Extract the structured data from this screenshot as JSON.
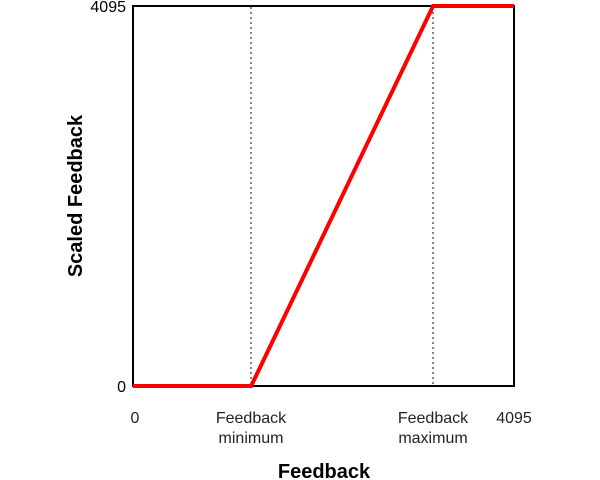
{
  "chart_data": {
    "type": "line",
    "title": "",
    "xlabel": "Feedback",
    "ylabel": "Scaled Feedback",
    "xlim": [
      0,
      4095
    ],
    "ylim": [
      0,
      4095
    ],
    "grid": false,
    "legend": null,
    "x_tick_labels": [
      {
        "label_line1": "0",
        "label_line2": "",
        "pos": 0
      },
      {
        "label_line1": "Feedback",
        "label_line2": "minimum",
        "pos": 1270
      },
      {
        "label_line1": "Feedback",
        "label_line2": "maximum",
        "pos": 3225
      },
      {
        "label_line1": "4095",
        "label_line2": "",
        "pos": 4095
      }
    ],
    "y_tick_labels": [
      {
        "label": "0",
        "pos": 0
      },
      {
        "label": "4095",
        "pos": 4095
      }
    ],
    "reference_lines": [
      {
        "orientation": "vertical",
        "style": "dotted",
        "x": 1270,
        "label": "Feedback minimum"
      },
      {
        "orientation": "vertical",
        "style": "dotted",
        "x": 3225,
        "label": "Feedback maximum"
      }
    ],
    "series": [
      {
        "name": "Scaled Feedback",
        "color": "#ff0000",
        "x": [
          0,
          1270,
          3225,
          4095
        ],
        "y": [
          0,
          0,
          4095,
          4095
        ]
      }
    ]
  },
  "labels": {
    "y_top": "4095",
    "y_bottom": "0",
    "x_zero": "0",
    "x_min_l1": "Feedback",
    "x_min_l2": "minimum",
    "x_max_l1": "Feedback",
    "x_max_l2": "maximum",
    "x_end": "4095",
    "xlabel": "Feedback",
    "ylabel": "Scaled Feedback"
  },
  "colors": {
    "line": "#ff0000",
    "axis": "#000000",
    "ref": "#333333"
  }
}
